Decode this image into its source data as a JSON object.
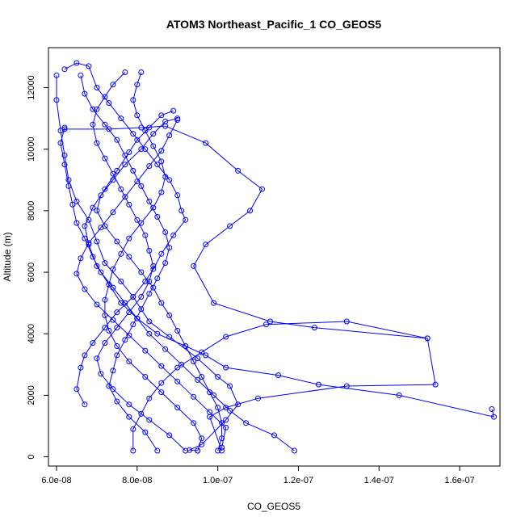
{
  "chart_data": {
    "type": "line",
    "title": "ATOM3 Northeast_Pacific_1 CO_GEOS5",
    "xlabel": "CO_GEOS5",
    "ylabel": "Altitude (m)",
    "xlim": [
      5.8e-08,
      1.7e-07
    ],
    "ylim": [
      -300,
      13300
    ],
    "x_ticks": [
      6e-08,
      8e-08,
      1e-07,
      1.2e-07,
      1.4e-07,
      1.6e-07
    ],
    "x_tick_labels": [
      "6.0e-08",
      "8.0e-08",
      "1.0e-07",
      "1.2e-07",
      "1.4e-07",
      "1.6e-07"
    ],
    "y_ticks": [
      0,
      2000,
      4000,
      6000,
      8000,
      10000,
      12000
    ],
    "y_tick_labels": [
      "0",
      "2000",
      "4000",
      "6000",
      "8000",
      "10000",
      "12000"
    ],
    "grid": false,
    "legend": "none",
    "colors": {
      "series": "#0000ff",
      "axis": "#000000",
      "background": "#ffffff"
    },
    "series": [
      {
        "color": "#0000ff",
        "marker": "open-circle",
        "points": [
          [
            9.5e-08,
            200
          ],
          [
            9.3e-08,
            220
          ],
          [
            9.6e-08,
            400
          ],
          [
            1.02e-07,
            1200
          ],
          [
            1.05e-07,
            1700
          ],
          [
            1.03e-07,
            2300
          ],
          [
            1e-07,
            2600
          ],
          [
            9.5e-08,
            3200
          ],
          [
            8.8e-08,
            3900
          ],
          [
            8.3e-08,
            4400
          ],
          [
            7.9e-08,
            5200
          ],
          [
            7.6e-08,
            5700
          ],
          [
            7.2e-08,
            6300
          ],
          [
            7e-08,
            7000
          ],
          [
            6.8e-08,
            7700
          ],
          [
            6.5e-08,
            8300
          ],
          [
            6.3e-08,
            9000
          ],
          [
            6.2e-08,
            9800
          ],
          [
            6.1e-08,
            10600
          ],
          [
            6e-08,
            11600
          ],
          [
            6e-08,
            12400
          ]
        ]
      },
      {
        "color": "#0000ff",
        "marker": "open-circle",
        "points": [
          [
            6.2e-08,
            12600
          ],
          [
            6.5e-08,
            12800
          ],
          [
            6.8e-08,
            12700
          ],
          [
            7e-08,
            12000
          ],
          [
            7.3e-08,
            11500
          ],
          [
            7.6e-08,
            11000
          ],
          [
            7.9e-08,
            10500
          ],
          [
            8.2e-08,
            10000
          ],
          [
            8.5e-08,
            9500
          ],
          [
            8.8e-08,
            9000
          ],
          [
            9e-08,
            8500
          ],
          [
            9.1e-08,
            8000
          ],
          [
            9.2e-08,
            7700
          ],
          [
            8.9e-08,
            7200
          ],
          [
            8.6e-08,
            6600
          ],
          [
            8.4e-08,
            6100
          ],
          [
            8.2e-08,
            5700
          ],
          [
            7.9e-08,
            5200
          ],
          [
            7.5e-08,
            4700
          ],
          [
            7.2e-08,
            4200
          ],
          [
            6.9e-08,
            3700
          ],
          [
            6.7e-08,
            3300
          ],
          [
            6.6e-08,
            2900
          ],
          [
            6.5e-08,
            2200
          ],
          [
            6.7e-08,
            1700
          ]
        ]
      },
      {
        "color": "#0000ff",
        "marker": "open-circle",
        "points": [
          [
            7.9e-08,
            200
          ],
          [
            7.9e-08,
            900
          ],
          [
            8.1e-08,
            1400
          ],
          [
            8.3e-08,
            1900
          ],
          [
            8.6e-08,
            2400
          ],
          [
            9e-08,
            2900
          ],
          [
            9.6e-08,
            3400
          ],
          [
            1.02e-07,
            3900
          ],
          [
            1.12e-07,
            4300
          ],
          [
            1.32e-07,
            4400
          ],
          [
            1.52e-07,
            3850
          ],
          [
            1.54e-07,
            2350
          ],
          [
            1.32e-07,
            2300
          ],
          [
            1.1e-07,
            1900
          ],
          [
            1.02e-07,
            1600
          ],
          [
            9.8e-08,
            1300
          ],
          [
            1.01e-07,
            200
          ]
        ]
      },
      {
        "color": "#0000ff",
        "marker": "open-circle",
        "points": [
          [
            1.19e-07,
            200
          ],
          [
            1.14e-07,
            700
          ],
          [
            1.07e-07,
            1100
          ],
          [
            1.03e-07,
            1500
          ],
          [
            9.9e-08,
            2000
          ],
          [
            9.5e-08,
            2500
          ],
          [
            9.1e-08,
            3000
          ],
          [
            8.7e-08,
            3500
          ],
          [
            8.3e-08,
            4000
          ],
          [
            8e-08,
            4500
          ],
          [
            7.7e-08,
            5000
          ],
          [
            7.4e-08,
            5500
          ],
          [
            7.1e-08,
            6000
          ],
          [
            6.9e-08,
            6500
          ],
          [
            6.7e-08,
            7100
          ],
          [
            6.5e-08,
            7600
          ],
          [
            6.4e-08,
            8200
          ],
          [
            6.3e-08,
            8800
          ],
          [
            6.2e-08,
            9500
          ],
          [
            6.1e-08,
            10200
          ],
          [
            6.2e-08,
            10700
          ]
        ]
      },
      {
        "color": "#0000ff",
        "marker": "open-circle",
        "points": [
          [
            6.2e-08,
            10650
          ],
          [
            7.3e-08,
            10650
          ],
          [
            8.1e-08,
            10700
          ],
          [
            8.7e-08,
            10750
          ],
          [
            9.7e-08,
            10200
          ],
          [
            1.05e-07,
            9300
          ],
          [
            1.11e-07,
            8700
          ],
          [
            1.08e-07,
            8000
          ],
          [
            1.03e-07,
            7500
          ],
          [
            9.7e-08,
            6900
          ],
          [
            9.4e-08,
            6200
          ],
          [
            9.9e-08,
            5000
          ],
          [
            1.13e-07,
            4400
          ],
          [
            1.24e-07,
            4200
          ],
          [
            1.52e-07,
            3850
          ]
        ]
      },
      {
        "color": "#0000ff",
        "marker": "open-circle",
        "points": [
          [
            1.68e-07,
            1550
          ],
          [
            1.685e-07,
            1300
          ],
          [
            1.45e-07,
            2000
          ],
          [
            1.25e-07,
            2350
          ],
          [
            1.15e-07,
            2650
          ],
          [
            1.02e-07,
            2900
          ],
          [
            9.7e-08,
            3300
          ],
          [
            9.2e-08,
            3600
          ],
          [
            8.5e-08,
            4000
          ],
          [
            8e-08,
            4500
          ],
          [
            7.6e-08,
            5000
          ],
          [
            7.3e-08,
            5600
          ],
          [
            7e-08,
            6200
          ],
          [
            6.8e-08,
            6900
          ],
          [
            6.7e-08,
            7500
          ],
          [
            6.9e-08,
            8100
          ],
          [
            7.2e-08,
            8700
          ],
          [
            7.5e-08,
            9300
          ],
          [
            7.8e-08,
            9900
          ],
          [
            8e-08,
            10300
          ],
          [
            8.3e-08,
            10700
          ],
          [
            8.6e-08,
            11100
          ],
          [
            8.9e-08,
            11250
          ]
        ]
      },
      {
        "color": "#0000ff",
        "marker": "open-circle",
        "points": [
          [
            9e-08,
            11000
          ],
          [
            8.7e-08,
            10900
          ],
          [
            8.4e-08,
            10500
          ],
          [
            8.1e-08,
            10000
          ],
          [
            7.7e-08,
            9500
          ],
          [
            7.4e-08,
            9000
          ],
          [
            7.1e-08,
            8500
          ],
          [
            7e-08,
            8000
          ],
          [
            7.2e-08,
            7500
          ],
          [
            7.5e-08,
            7000
          ],
          [
            7.8e-08,
            6500
          ],
          [
            8.1e-08,
            6000
          ],
          [
            8.4e-08,
            5500
          ],
          [
            8.6e-08,
            5000
          ],
          [
            8.8e-08,
            4600
          ],
          [
            9e-08,
            4100
          ],
          [
            9.2e-08,
            3600
          ],
          [
            9.4e-08,
            3100
          ],
          [
            9.6e-08,
            2600
          ],
          [
            9.8e-08,
            2100
          ],
          [
            1e-07,
            1600
          ],
          [
            1.01e-07,
            1100
          ],
          [
            1.01e-07,
            600
          ],
          [
            1e-07,
            200
          ]
        ]
      },
      {
        "color": "#0000ff",
        "marker": "open-circle",
        "points": [
          [
            6.6e-08,
            12400
          ],
          [
            6.7e-08,
            11800
          ],
          [
            6.9e-08,
            11300
          ],
          [
            7.2e-08,
            10800
          ],
          [
            7.5e-08,
            10300
          ],
          [
            7.7e-08,
            9800
          ],
          [
            7.9e-08,
            9300
          ],
          [
            8.1e-08,
            8800
          ],
          [
            8.3e-08,
            8300
          ],
          [
            8.5e-08,
            7800
          ],
          [
            8.7e-08,
            7300
          ],
          [
            8.8e-08,
            6800
          ],
          [
            8.7e-08,
            6300
          ],
          [
            8.5e-08,
            5800
          ],
          [
            8.3e-08,
            5300
          ],
          [
            8.1e-08,
            4800
          ],
          [
            7.9e-08,
            4300
          ],
          [
            7.7e-08,
            3800
          ],
          [
            7.5e-08,
            3300
          ],
          [
            7.4e-08,
            2800
          ],
          [
            7.3e-08,
            2300
          ],
          [
            7.5e-08,
            1800
          ],
          [
            7.8e-08,
            1300
          ],
          [
            8.2e-08,
            800
          ],
          [
            8.5e-08,
            200
          ]
        ]
      },
      {
        "color": "#0000ff",
        "marker": "open-circle",
        "points": [
          [
            7.7e-08,
            12500
          ],
          [
            7.4e-08,
            12100
          ],
          [
            7.2e-08,
            11700
          ],
          [
            7e-08,
            11300
          ],
          [
            6.9e-08,
            10800
          ],
          [
            7e-08,
            10200
          ],
          [
            7.2e-08,
            9700
          ],
          [
            7.4e-08,
            9200
          ],
          [
            7.6e-08,
            8700
          ],
          [
            7.8e-08,
            8200
          ],
          [
            8e-08,
            7700
          ],
          [
            8.2e-08,
            7200
          ],
          [
            8.3e-08,
            6700
          ],
          [
            8.4e-08,
            6200
          ],
          [
            8.3e-08,
            5700
          ],
          [
            8.1e-08,
            5200
          ],
          [
            7.8e-08,
            4700
          ],
          [
            7.5e-08,
            4200
          ],
          [
            7.2e-08,
            3700
          ],
          [
            7e-08,
            3200
          ],
          [
            7.1e-08,
            2700
          ],
          [
            7.4e-08,
            2200
          ],
          [
            7.8e-08,
            1700
          ],
          [
            8.3e-08,
            1200
          ],
          [
            8.8e-08,
            700
          ],
          [
            9.2e-08,
            200
          ]
        ]
      },
      {
        "color": "#0000ff",
        "marker": "open-circle",
        "points": [
          [
            8.1e-08,
            12500
          ],
          [
            8e-08,
            12100
          ],
          [
            7.9e-08,
            11600
          ],
          [
            8e-08,
            11100
          ],
          [
            8.2e-08,
            10600
          ],
          [
            8.4e-08,
            10100
          ],
          [
            8.6e-08,
            9600
          ],
          [
            8.7e-08,
            9100
          ],
          [
            8.6e-08,
            8600
          ],
          [
            8.4e-08,
            8100
          ],
          [
            8.1e-08,
            7600
          ],
          [
            7.8e-08,
            7100
          ],
          [
            7.6e-08,
            6600
          ],
          [
            7.4e-08,
            6100
          ],
          [
            7.3e-08,
            5600
          ],
          [
            7.2e-08,
            5100
          ],
          [
            7.2e-08,
            4600
          ],
          [
            7.3e-08,
            4100
          ],
          [
            7.5e-08,
            3600
          ],
          [
            7.8e-08,
            3100
          ],
          [
            8.2e-08,
            2600
          ],
          [
            8.6e-08,
            2100
          ],
          [
            9e-08,
            1600
          ],
          [
            9.4e-08,
            1100
          ],
          [
            9.6e-08,
            600
          ],
          [
            9.5e-08,
            200
          ]
        ]
      },
      {
        "color": "#0000ff",
        "marker": "open-circle",
        "points": [
          [
            9e-08,
            10950
          ],
          [
            8.8e-08,
            10450
          ],
          [
            8.6e-08,
            9950
          ],
          [
            8.3e-08,
            9450
          ],
          [
            8e-08,
            8950
          ],
          [
            7.7e-08,
            8450
          ],
          [
            7.4e-08,
            7950
          ],
          [
            7.1e-08,
            7450
          ],
          [
            6.8e-08,
            6950
          ],
          [
            6.6e-08,
            6450
          ],
          [
            6.5e-08,
            5950
          ],
          [
            6.7e-08,
            5450
          ],
          [
            7e-08,
            4950
          ],
          [
            7.4e-08,
            4450
          ],
          [
            7.8e-08,
            3950
          ],
          [
            8.2e-08,
            3450
          ],
          [
            8.6e-08,
            2950
          ],
          [
            9e-08,
            2450
          ],
          [
            9.4e-08,
            1950
          ],
          [
            9.8e-08,
            1450
          ],
          [
            1.02e-07,
            950
          ],
          [
            1.01e-07,
            300
          ]
        ]
      }
    ]
  }
}
